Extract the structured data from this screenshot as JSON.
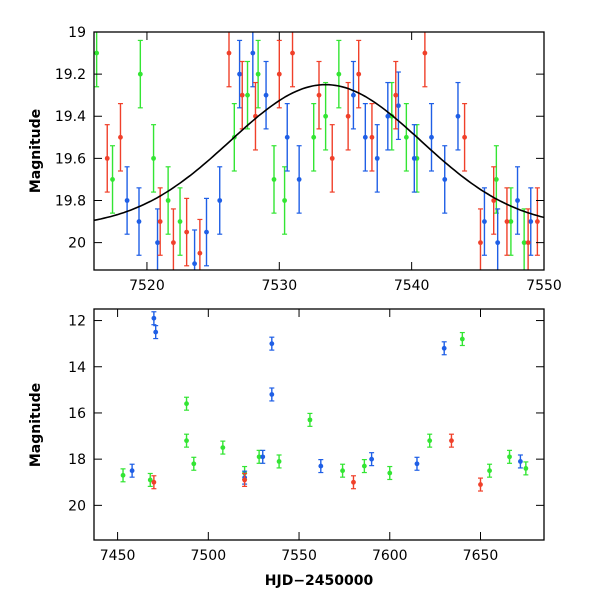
{
  "colors": {
    "green": "#33e533",
    "blue": "#1f5fe6",
    "red": "#f0402a",
    "model": "#000000"
  },
  "chart_data": [
    {
      "type": "scatter",
      "title": "",
      "xlabel": "",
      "ylabel": "Magnitude",
      "xlim": [
        7516,
        7550
      ],
      "ylim": [
        20.13,
        19.0
      ],
      "y_inverted": true,
      "xticks": [
        "7520",
        "7530",
        "7540",
        "7550"
      ],
      "yticks": [
        "19",
        "19.2",
        "19.4",
        "19.6",
        "19.8",
        "20"
      ],
      "series": [
        {
          "color": "green",
          "points": [
            [
              7516.2,
              19.1
            ],
            [
              7517.4,
              19.7
            ],
            [
              7519.5,
              19.2
            ],
            [
              7520.5,
              19.6
            ],
            [
              7521.6,
              19.8
            ],
            [
              7522.5,
              19.9
            ],
            [
              7526.6,
              19.5
            ],
            [
              7527.6,
              19.3
            ],
            [
              7528.4,
              19.2
            ],
            [
              7529.6,
              19.7
            ],
            [
              7530.4,
              19.8
            ],
            [
              7532.6,
              19.5
            ],
            [
              7533.5,
              19.4
            ],
            [
              7534.5,
              19.2
            ],
            [
              7538.5,
              19.4
            ],
            [
              7539.6,
              19.5
            ],
            [
              7540.4,
              19.6
            ],
            [
              7546.4,
              19.7
            ],
            [
              7547.5,
              19.9
            ],
            [
              7548.5,
              20.0
            ]
          ]
        },
        {
          "color": "blue",
          "points": [
            [
              7518.5,
              19.8
            ],
            [
              7519.4,
              19.9
            ],
            [
              7520.8,
              20.0
            ],
            [
              7523.6,
              20.1
            ],
            [
              7524.5,
              19.95
            ],
            [
              7525.5,
              19.8
            ],
            [
              7527.0,
              19.2
            ],
            [
              7528.0,
              19.1
            ],
            [
              7529.0,
              19.3
            ],
            [
              7530.6,
              19.5
            ],
            [
              7531.5,
              19.7
            ],
            [
              7535.6,
              19.3
            ],
            [
              7536.5,
              19.5
            ],
            [
              7537.4,
              19.6
            ],
            [
              7538.2,
              19.4
            ],
            [
              7539.0,
              19.35
            ],
            [
              7540.2,
              19.6
            ],
            [
              7541.5,
              19.5
            ],
            [
              7542.5,
              19.7
            ],
            [
              7543.5,
              19.4
            ],
            [
              7545.5,
              19.9
            ],
            [
              7546.5,
              20.0
            ],
            [
              7548.0,
              19.8
            ],
            [
              7549.0,
              19.9
            ]
          ]
        },
        {
          "color": "red",
          "points": [
            [
              7517.0,
              19.6
            ],
            [
              7518.0,
              19.5
            ],
            [
              7521.0,
              19.9
            ],
            [
              7522.0,
              20.0
            ],
            [
              7523.0,
              19.95
            ],
            [
              7524.0,
              20.05
            ],
            [
              7526.2,
              19.1
            ],
            [
              7527.2,
              19.3
            ],
            [
              7528.2,
              19.4
            ],
            [
              7530.0,
              19.2
            ],
            [
              7531.0,
              19.1
            ],
            [
              7533.0,
              19.3
            ],
            [
              7534.0,
              19.6
            ],
            [
              7535.2,
              19.4
            ],
            [
              7536.0,
              19.2
            ],
            [
              7537.0,
              19.5
            ],
            [
              7538.8,
              19.3
            ],
            [
              7541.0,
              19.1
            ],
            [
              7544.0,
              19.5
            ],
            [
              7545.2,
              20.0
            ],
            [
              7546.2,
              19.8
            ],
            [
              7547.2,
              19.9
            ],
            [
              7548.8,
              20.0
            ],
            [
              7549.5,
              19.9
            ]
          ]
        },
        {
          "color": "model",
          "line": true,
          "function": "19.25 + 0.68*(1 - exp(-((x-7533.5)/10.2)^2))"
        }
      ]
    },
    {
      "type": "scatter",
      "title": "",
      "xlabel": "HJD−2450000",
      "ylabel": "Magnitude",
      "xlim": [
        7437,
        7685
      ],
      "ylim": [
        21.5,
        11.5
      ],
      "y_inverted": true,
      "xticks": [
        "7450",
        "7500",
        "7550",
        "7600",
        "7650"
      ],
      "yticks": [
        "12",
        "14",
        "16",
        "18",
        "20"
      ],
      "series": [
        {
          "color": "green",
          "points": [
            [
              7453,
              18.7
            ],
            [
              7468,
              18.9
            ],
            [
              7488,
              15.6
            ],
            [
              7488,
              17.2
            ],
            [
              7492,
              18.2
            ],
            [
              7508,
              17.5
            ],
            [
              7520,
              18.6
            ],
            [
              7528,
              17.9
            ],
            [
              7539,
              18.1
            ],
            [
              7556,
              16.3
            ],
            [
              7574,
              18.5
            ],
            [
              7586,
              18.3
            ],
            [
              7600,
              18.6
            ],
            [
              7622,
              17.2
            ],
            [
              7640,
              12.8
            ],
            [
              7655,
              18.5
            ],
            [
              7666,
              17.9
            ],
            [
              7675,
              18.4
            ]
          ]
        },
        {
          "color": "blue",
          "points": [
            [
              7470,
              11.9
            ],
            [
              7471,
              12.5
            ],
            [
              7535,
              13.0
            ],
            [
              7535,
              15.2
            ],
            [
              7530,
              17.9
            ],
            [
              7562,
              18.3
            ],
            [
              7590,
              18.0
            ],
            [
              7630,
              13.2
            ],
            [
              7615,
              18.2
            ],
            [
              7672,
              18.1
            ],
            [
              7458,
              18.5
            ],
            [
              7520,
              18.8
            ]
          ]
        },
        {
          "color": "red",
          "points": [
            [
              7634,
              17.2
            ],
            [
              7470,
              19.0
            ],
            [
              7520,
              18.9
            ],
            [
              7580,
              19.0
            ],
            [
              7650,
              19.1
            ]
          ]
        }
      ]
    }
  ]
}
